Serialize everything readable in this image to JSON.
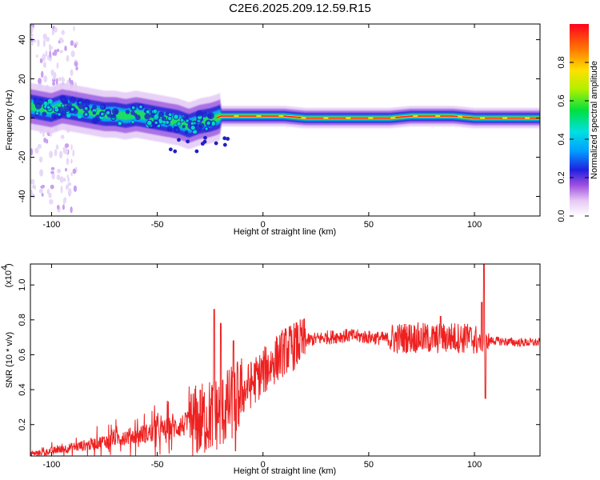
{
  "title": "C2E6.2025.209.12.59.R15",
  "colorbar": {
    "label": "Normalized spectral amplitude",
    "ticks": [
      "0.0",
      "0.2",
      "0.4",
      "0.6",
      "0.8"
    ],
    "range": [
      0,
      1
    ]
  },
  "chart_data": [
    {
      "type": "heatmap",
      "xlabel": "Height of straight line (km)",
      "ylabel": "Frequency (Hz)",
      "xlim": [
        -110,
        131
      ],
      "ylim": [
        -50,
        48
      ],
      "xticks": [
        -100,
        -50,
        0,
        50,
        100
      ],
      "yticks": [
        -40,
        -20,
        0,
        20,
        40
      ],
      "ridge": {
        "x": [
          -110,
          -105,
          -100,
          -95,
          -90,
          -85,
          -80,
          -75,
          -70,
          -65,
          -60,
          -55,
          -50,
          -45,
          -40,
          -35,
          -30,
          -25,
          -22,
          -20,
          -15,
          -10,
          0,
          10,
          20,
          30,
          40,
          50,
          60,
          70,
          80,
          90,
          100,
          110,
          120,
          131
        ],
        "y": [
          6,
          5,
          4,
          6,
          5,
          4,
          3,
          2,
          2,
          1,
          2,
          1,
          0,
          -1,
          -2,
          -4,
          -2,
          -1,
          0,
          1,
          1,
          1,
          1,
          1,
          0,
          0,
          0,
          0,
          0,
          1,
          1,
          1,
          0,
          0,
          0,
          0
        ]
      }
    },
    {
      "type": "line",
      "xlabel": "Height of straight line (km)",
      "ylabel": "SNR (10 * v/v)",
      "yscale_label": "(x10",
      "yscale_exp": "4",
      "xlim": [
        -110,
        131
      ],
      "ylim": [
        0.02,
        1.12
      ],
      "xticks": [
        -100,
        -50,
        0,
        50,
        100
      ],
      "yticks": [
        0.2,
        0.4,
        0.6,
        0.8,
        1.0
      ],
      "series": [
        {
          "color": "#ee2020",
          "baseline": {
            "x": [
              -110,
              -100,
              -90,
              -80,
              -70,
              -60,
              -50,
              -40,
              -30,
              -25,
              -20,
              -15,
              -10,
              -5,
              0,
              5,
              10,
              20,
              30,
              40,
              50,
              60,
              70,
              80,
              90,
              100,
              104,
              106,
              110,
              120,
              131
            ],
            "y": [
              0.03,
              0.05,
              0.07,
              0.09,
              0.12,
              0.14,
              0.16,
              0.19,
              0.22,
              0.25,
              0.27,
              0.32,
              0.38,
              0.44,
              0.5,
              0.56,
              0.62,
              0.68,
              0.7,
              0.71,
              0.7,
              0.69,
              0.7,
              0.69,
              0.7,
              0.69,
              0.66,
              0.68,
              0.68,
              0.67,
              0.67
            ]
          },
          "spikes": [
            {
              "x": -23,
              "y": 0.86
            },
            {
              "x": -20,
              "y": 0.78
            },
            {
              "x": -14,
              "y": 0.68
            },
            {
              "x": -13,
              "y": 0.05
            },
            {
              "x": 103.5,
              "y": 0.9
            },
            {
              "x": 104.5,
              "y": 1.12
            },
            {
              "x": 105.2,
              "y": 0.35
            },
            {
              "x": 84,
              "y": 0.82
            },
            {
              "x": 96,
              "y": 0.76
            }
          ]
        }
      ]
    }
  ]
}
